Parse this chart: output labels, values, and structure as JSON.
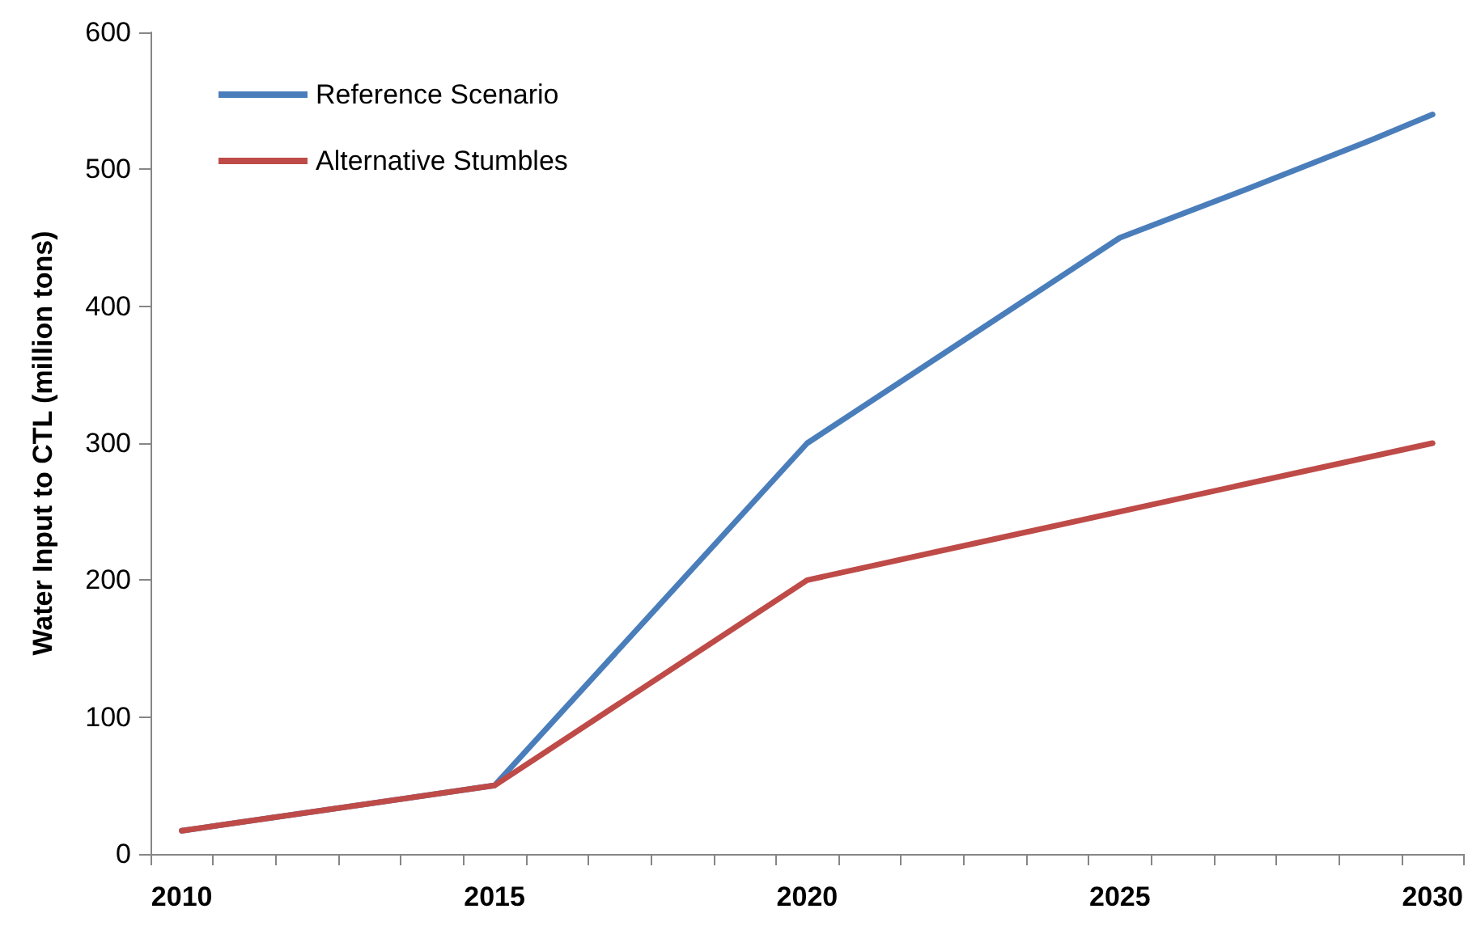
{
  "chart_data": {
    "type": "line",
    "ylabel": "Water Input to CTL (million tons)",
    "categories": [
      "2010",
      null,
      null,
      null,
      null,
      "2015",
      null,
      null,
      null,
      null,
      "2020",
      null,
      null,
      null,
      null,
      "2025",
      null,
      null,
      null,
      null,
      "2030"
    ],
    "ylim": [
      0,
      600
    ],
    "yticks": [
      0,
      100,
      200,
      300,
      400,
      500,
      600
    ],
    "grid": false,
    "legend": "top left",
    "marker": "none",
    "line_style": "solid",
    "series": [
      {
        "name": "Reference Scenario",
        "color": "#4a7ebb",
        "values": [
          17,
          null,
          null,
          null,
          null,
          50,
          null,
          null,
          null,
          null,
          300,
          null,
          null,
          null,
          null,
          450,
          null,
          485,
          null,
          521,
          540
        ]
      },
      {
        "name": "Alternative Stumbles",
        "color": "#be4b48",
        "values": [
          17,
          null,
          null,
          null,
          null,
          50,
          null,
          null,
          null,
          null,
          200,
          null,
          null,
          230,
          null,
          null,
          null,
          null,
          null,
          null,
          300
        ]
      }
    ]
  }
}
